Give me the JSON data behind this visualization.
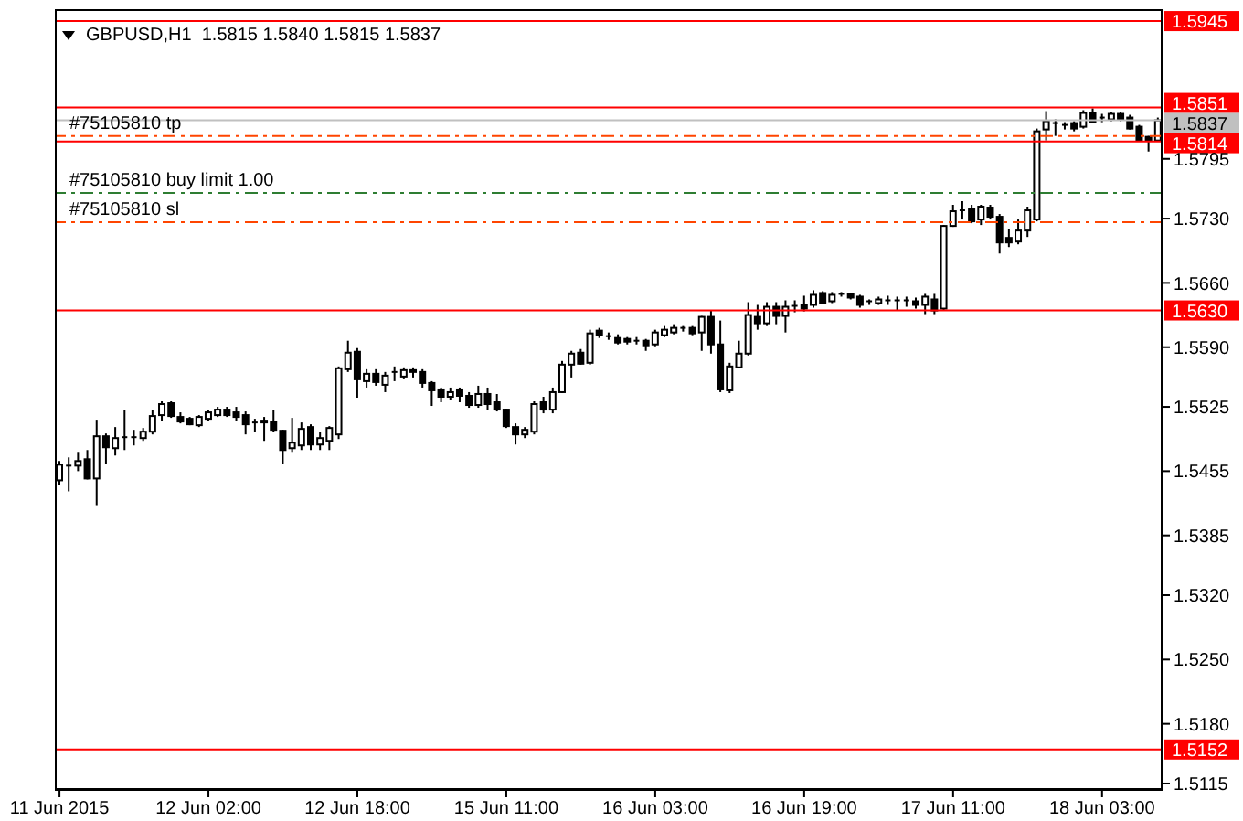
{
  "chart_data": {
    "type": "candlestick",
    "title": "GBPUSD,H1  1.5815 1.5840 1.5815 1.5837",
    "categories": [
      "11 Jun 2015",
      null,
      null,
      null,
      null,
      null,
      null,
      null,
      null,
      null,
      null,
      null,
      null,
      null,
      null,
      null,
      "12 Jun 02:00",
      null,
      null,
      null,
      null,
      null,
      null,
      null,
      null,
      null,
      null,
      null,
      null,
      null,
      null,
      null,
      "12 Jun 18:00",
      null,
      null,
      null,
      null,
      null,
      null,
      null,
      null,
      null,
      null,
      null,
      null,
      null,
      null,
      null,
      "15 Jun 11:00",
      null,
      null,
      null,
      null,
      null,
      null,
      null,
      null,
      null,
      null,
      null,
      null,
      null,
      null,
      null,
      "16 Jun 03:00",
      null,
      null,
      null,
      null,
      null,
      null,
      null,
      null,
      null,
      null,
      null,
      null,
      null,
      null,
      null,
      "16 Jun 19:00",
      null,
      null,
      null,
      null,
      null,
      null,
      null,
      null,
      null,
      null,
      null,
      null,
      null,
      null,
      null,
      "17 Jun 11:00",
      null,
      null,
      null,
      null,
      null,
      null,
      null,
      null,
      null,
      null,
      null,
      null,
      null,
      null,
      null,
      "18 Jun 03:00",
      null,
      null,
      null,
      null,
      null,
      null
    ],
    "ohlc": [
      [
        1.5445,
        1.5466,
        1.544,
        1.5462
      ],
      [
        1.546,
        1.547,
        1.5433,
        1.5461
      ],
      [
        1.5461,
        1.5476,
        1.5455,
        1.5466
      ],
      [
        1.5468,
        1.5478,
        1.5446,
        1.5447
      ],
      [
        1.5447,
        1.5511,
        1.5418,
        1.5493
      ],
      [
        1.5493,
        1.5496,
        1.5463,
        1.5481
      ],
      [
        1.548,
        1.5503,
        1.5472,
        1.5491
      ],
      [
        1.5491,
        1.5522,
        1.5478,
        1.5492
      ],
      [
        1.5491,
        1.55,
        1.5483,
        1.5492
      ],
      [
        1.5491,
        1.5502,
        1.5488,
        1.5498
      ],
      [
        1.5498,
        1.5522,
        1.5495,
        1.5515
      ],
      [
        1.5516,
        1.5531,
        1.551,
        1.5528
      ],
      [
        1.5529,
        1.5531,
        1.5513,
        1.5515
      ],
      [
        1.5514,
        1.5519,
        1.5507,
        1.5509
      ],
      [
        1.5512,
        1.5514,
        1.5505,
        1.5506
      ],
      [
        1.5505,
        1.5516,
        1.5503,
        1.5514
      ],
      [
        1.5512,
        1.5522,
        1.551,
        1.5519
      ],
      [
        1.5516,
        1.5525,
        1.5514,
        1.5522
      ],
      [
        1.5522,
        1.5525,
        1.5514,
        1.5516
      ],
      [
        1.5519,
        1.5525,
        1.551,
        1.5514
      ],
      [
        1.5516,
        1.552,
        1.5495,
        1.5506
      ],
      [
        1.5508,
        1.5512,
        1.5498,
        1.5507
      ],
      [
        1.551,
        1.5514,
        1.5488,
        1.5508
      ],
      [
        1.5509,
        1.5522,
        1.5498,
        1.55
      ],
      [
        1.5499,
        1.55,
        1.5463,
        1.5478
      ],
      [
        1.548,
        1.5513,
        1.5476,
        1.5486
      ],
      [
        1.5483,
        1.5508,
        1.5478,
        1.5501
      ],
      [
        1.5503,
        1.5506,
        1.5478,
        1.5484
      ],
      [
        1.5484,
        1.5498,
        1.5478,
        1.5491
      ],
      [
        1.5488,
        1.5504,
        1.5478,
        1.5502
      ],
      [
        1.5495,
        1.5569,
        1.549,
        1.5567
      ],
      [
        1.5566,
        1.5597,
        1.5563,
        1.5584
      ],
      [
        1.5585,
        1.5589,
        1.5535,
        1.5555
      ],
      [
        1.5553,
        1.5566,
        1.5546,
        1.5561
      ],
      [
        1.5561,
        1.5566,
        1.5548,
        1.5552
      ],
      [
        1.5549,
        1.5563,
        1.5541,
        1.5559
      ],
      [
        1.5562,
        1.5569,
        1.5553,
        1.5563
      ],
      [
        1.5558,
        1.5568,
        1.5556,
        1.5565
      ],
      [
        1.5565,
        1.5568,
        1.5557,
        1.5563
      ],
      [
        1.5563,
        1.5566,
        1.5546,
        1.5551
      ],
      [
        1.5551,
        1.5553,
        1.5526,
        1.5543
      ],
      [
        1.5544,
        1.5546,
        1.553,
        1.5536
      ],
      [
        1.5536,
        1.5546,
        1.5532,
        1.5541
      ],
      [
        1.5544,
        1.5546,
        1.553,
        1.5537
      ],
      [
        1.5537,
        1.5541,
        1.5524,
        1.5527
      ],
      [
        1.5527,
        1.5548,
        1.5524,
        1.5539
      ],
      [
        1.5539,
        1.5546,
        1.5522,
        1.5528
      ],
      [
        1.553,
        1.5539,
        1.552,
        1.5522
      ],
      [
        1.5522,
        1.5523,
        1.5502,
        1.5504
      ],
      [
        1.5503,
        1.5507,
        1.5484,
        1.5495
      ],
      [
        1.5495,
        1.5503,
        1.5491,
        1.55
      ],
      [
        1.5498,
        1.5531,
        1.5495,
        1.5528
      ],
      [
        1.553,
        1.5536,
        1.5518,
        1.5522
      ],
      [
        1.5522,
        1.5546,
        1.5518,
        1.5541
      ],
      [
        1.5541,
        1.5575,
        1.554,
        1.5571
      ],
      [
        1.5571,
        1.5586,
        1.5557,
        1.5583
      ],
      [
        1.5584,
        1.5588,
        1.5571,
        1.5572
      ],
      [
        1.5573,
        1.5609,
        1.5571,
        1.5605
      ],
      [
        1.5608,
        1.5611,
        1.56,
        1.5603
      ],
      [
        1.5602,
        1.5606,
        1.5598,
        1.5601
      ],
      [
        1.56,
        1.5604,
        1.5593,
        1.5595
      ],
      [
        1.5599,
        1.5601,
        1.5593,
        1.5596
      ],
      [
        1.5597,
        1.5601,
        1.5593,
        1.5596
      ],
      [
        1.5597,
        1.5599,
        1.5586,
        1.5592
      ],
      [
        1.5593,
        1.5609,
        1.5591,
        1.5606
      ],
      [
        1.5603,
        1.5613,
        1.5601,
        1.5609
      ],
      [
        1.5606,
        1.5615,
        1.5604,
        1.5611
      ],
      [
        1.5611,
        1.5613,
        1.5607,
        1.561
      ],
      [
        1.5611,
        1.5613,
        1.5603,
        1.5605
      ],
      [
        1.5606,
        1.5624,
        1.5586,
        1.5623
      ],
      [
        1.5623,
        1.563,
        1.5583,
        1.5593
      ],
      [
        1.5593,
        1.5619,
        1.5541,
        1.5544
      ],
      [
        1.5543,
        1.5573,
        1.554,
        1.5569
      ],
      [
        1.5568,
        1.5597,
        1.5567,
        1.5583
      ],
      [
        1.5583,
        1.5639,
        1.5581,
        1.5625
      ],
      [
        1.5623,
        1.5636,
        1.5609,
        1.5616
      ],
      [
        1.5616,
        1.5639,
        1.5613,
        1.5634
      ],
      [
        1.5634,
        1.5639,
        1.5615,
        1.5624
      ],
      [
        1.5624,
        1.5641,
        1.5606,
        1.5634
      ],
      [
        1.5634,
        1.5641,
        1.5628,
        1.5635
      ],
      [
        1.5636,
        1.5646,
        1.5629,
        1.5632
      ],
      [
        1.5636,
        1.5652,
        1.5633,
        1.5647
      ],
      [
        1.5649,
        1.5651,
        1.5637,
        1.5638
      ],
      [
        1.564,
        1.565,
        1.5638,
        1.5647
      ],
      [
        1.5648,
        1.565,
        1.5645,
        1.5647
      ],
      [
        1.5648,
        1.5649,
        1.5642,
        1.5644
      ],
      [
        1.5645,
        1.5647,
        1.5633,
        1.5636
      ],
      [
        1.5639,
        1.5642,
        1.5636,
        1.564
      ],
      [
        1.5638,
        1.5645,
        1.5636,
        1.5642
      ],
      [
        1.5641,
        1.5646,
        1.5636,
        1.5641
      ],
      [
        1.564,
        1.5645,
        1.563,
        1.5641
      ],
      [
        1.5641,
        1.5645,
        1.5634,
        1.564
      ],
      [
        1.564,
        1.5644,
        1.5632,
        1.5636
      ],
      [
        1.5636,
        1.5648,
        1.5626,
        1.5645
      ],
      [
        1.5642,
        1.5648,
        1.5626,
        1.563
      ],
      [
        1.5632,
        1.5723,
        1.563,
        1.5722
      ],
      [
        1.5722,
        1.5745,
        1.5721,
        1.5738
      ],
      [
        1.5738,
        1.5749,
        1.5729,
        1.5739
      ],
      [
        1.574,
        1.5745,
        1.5725,
        1.5727
      ],
      [
        1.5729,
        1.5745,
        1.5723,
        1.5743
      ],
      [
        1.5742,
        1.5745,
        1.5729,
        1.5732
      ],
      [
        1.5732,
        1.5735,
        1.5692,
        1.5704
      ],
      [
        1.5709,
        1.5719,
        1.5699,
        1.5704
      ],
      [
        1.5705,
        1.5729,
        1.5702,
        1.5717
      ],
      [
        1.5717,
        1.5743,
        1.571,
        1.5739
      ],
      [
        1.5729,
        1.5828,
        1.5727,
        1.5825
      ],
      [
        1.5827,
        1.5847,
        1.5815,
        1.5836
      ],
      [
        1.5834,
        1.5838,
        1.582,
        1.5833
      ],
      [
        1.5832,
        1.5835,
        1.5827,
        1.5832
      ],
      [
        1.5834,
        1.5836,
        1.5825,
        1.5828
      ],
      [
        1.583,
        1.5848,
        1.5828,
        1.5845
      ],
      [
        1.5845,
        1.585,
        1.5834,
        1.5835
      ],
      [
        1.584,
        1.5844,
        1.5835,
        1.584
      ],
      [
        1.5838,
        1.5846,
        1.5836,
        1.5844
      ],
      [
        1.5844,
        1.5846,
        1.5836,
        1.5838
      ],
      [
        1.584,
        1.5843,
        1.5827,
        1.5828
      ],
      [
        1.583,
        1.5832,
        1.5814,
        1.5815
      ],
      [
        1.5819,
        1.582,
        1.5803,
        1.5815
      ],
      [
        1.5815,
        1.584,
        1.5815,
        1.5837
      ]
    ],
    "ylim": [
      1.5108,
      1.5958
    ],
    "yticks": [
      1.5795,
      {
        "value": 1.573,
        "label": "1.5730"
      },
      {
        "value": 1.566,
        "label": "1.5660"
      },
      {
        "value": 1.559,
        "label": "1.5590"
      },
      1.5525,
      1.5455,
      1.5385,
      {
        "value": 1.532,
        "label": "1.5320"
      },
      {
        "value": 1.525,
        "label": "1.5250"
      },
      {
        "value": 1.518,
        "label": "1.5180"
      },
      1.5115
    ],
    "ref_lines": [
      {
        "axis": "y",
        "value": 1.5945,
        "label": "1.5945",
        "color": "#ff0000",
        "line_style": "solid"
      },
      {
        "axis": "y",
        "value": 1.5851,
        "label": "1.5851",
        "color": "#ff0000",
        "line_style": "solid"
      },
      {
        "axis": "y",
        "value": 1.5837,
        "label": "1.5837",
        "color": "#c0c0c0",
        "line_style": "solid"
      },
      {
        "axis": "y",
        "value": 1.5814,
        "label": "1.5814",
        "color": "#ff0000",
        "line_style": "solid"
      },
      {
        "axis": "y",
        "value": 1.563,
        "label": "1.5630",
        "color": "#ff0000",
        "line_style": "solid"
      },
      {
        "axis": "y",
        "value": 1.5152,
        "label": "1.5152",
        "color": "#ff0000",
        "line_style": "solid"
      },
      {
        "axis": "y",
        "value": 1.582,
        "label": "#75105810 tp",
        "color": "#ff4500",
        "line_style": "dashed"
      },
      {
        "axis": "y",
        "value": 1.5758,
        "label": "#75105810 buy limit 1.00",
        "color": "#2e7d32",
        "line_style": "dashed"
      },
      {
        "axis": "y",
        "value": 1.5726,
        "label": "#75105810 sl",
        "color": "#ff4500",
        "line_style": "dashed"
      }
    ]
  }
}
